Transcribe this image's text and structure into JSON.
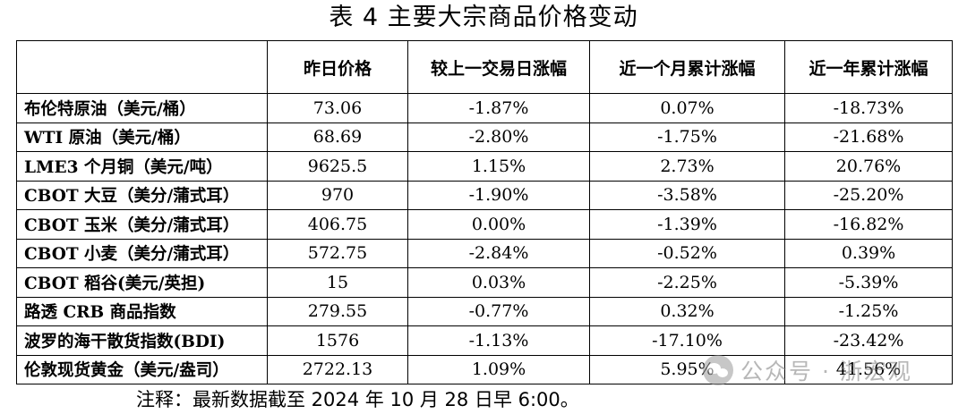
{
  "title": "表 4 主要大宗商品价格变动",
  "table": {
    "headers": [
      "",
      "昨日价格",
      "较上一交易日涨幅",
      "近一个月累计涨幅",
      "近一年累计涨幅"
    ],
    "rows": [
      [
        "布伦特原油（美元/桶）",
        "73.06",
        "-1.87%",
        "0.07%",
        "-18.73%"
      ],
      [
        "WTI 原油（美元/桶）",
        "68.69",
        "-2.80%",
        "-1.75%",
        "-21.68%"
      ],
      [
        "LME3 个月铜（美元/吨）",
        "9625.5",
        "1.15%",
        "2.73%",
        "20.76%"
      ],
      [
        "CBOT 大豆（美分/蒲式耳）",
        "970",
        "-1.90%",
        "-3.58%",
        "-25.20%"
      ],
      [
        "CBOT 玉米（美分/蒲式耳）",
        "406.75",
        "0.00%",
        "-1.39%",
        "-16.82%"
      ],
      [
        "CBOT 小麦（美分/蒲式耳）",
        "572.75",
        "-2.84%",
        "-0.52%",
        "0.39%"
      ],
      [
        "CBOT 稻谷(美元/英担)",
        "15",
        "0.03%",
        "-2.25%",
        "-5.39%"
      ],
      [
        "路透 CRB 商品指数",
        "279.55",
        "-0.77%",
        "0.32%",
        "-1.25%"
      ],
      [
        "波罗的海干散货指数(BDI)",
        "1576",
        "-1.13%",
        "-17.10%",
        "-23.42%"
      ],
      [
        "伦敦现货黄金（美元/盎司）",
        "2722.13",
        "1.09%",
        "5.95%",
        "41.56%"
      ]
    ]
  },
  "note": "注释：最新数据截至 2024 年 10 月 28 日早 6:00。",
  "watermark": {
    "icon": "wechat-icon",
    "text": "公众号 · 浙宏观"
  }
}
